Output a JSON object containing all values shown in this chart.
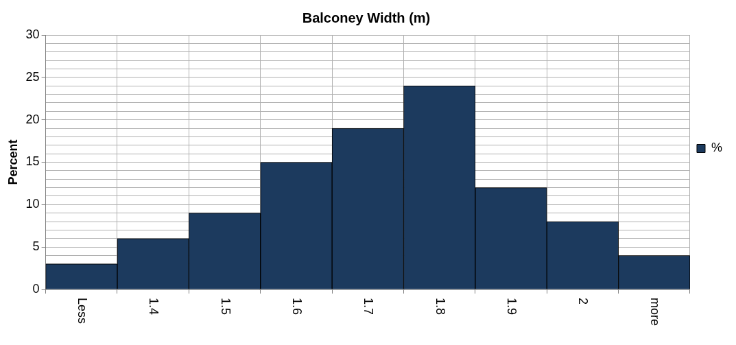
{
  "chart_data": {
    "type": "bar",
    "title": "Balconey Width (m)",
    "ylabel": "Percent",
    "categories": [
      "Less",
      "1.4",
      "1.5",
      "1.6",
      "1.7",
      "1.8",
      "1.9",
      "2",
      "more"
    ],
    "series": [
      {
        "name": "%",
        "color": "#1c3a5e",
        "values": [
          3,
          6,
          9,
          15,
          19,
          24,
          12,
          8,
          4
        ]
      }
    ],
    "ylim": [
      0,
      30
    ],
    "yticks": [
      0,
      {
        "value": 3,
        "label": null
      },
      {
        "value": 4,
        "label": null
      },
      5,
      {
        "value": 6,
        "label": null
      },
      {
        "value": 7,
        "label": null
      },
      {
        "value": 8,
        "label": null
      },
      {
        "value": 9,
        "label": null
      },
      10,
      {
        "value": 11,
        "label": null
      },
      {
        "value": 12,
        "label": null
      },
      {
        "value": 13,
        "label": null
      },
      {
        "value": 14,
        "label": null
      },
      15,
      {
        "value": 16,
        "label": null
      },
      {
        "value": 17,
        "label": null
      },
      {
        "value": 18,
        "label": null
      },
      {
        "value": 19,
        "label": null
      },
      20,
      {
        "value": 21,
        "label": null
      },
      {
        "value": 22,
        "label": null
      },
      {
        "value": 23,
        "label": null
      },
      {
        "value": 24,
        "label": null
      },
      25,
      {
        "value": 26,
        "label": null
      },
      {
        "value": 27,
        "label": null
      },
      {
        "value": 28,
        "label": null
      },
      {
        "value": 29,
        "label": null
      },
      30
    ],
    "grid": true,
    "legend": "right"
  }
}
